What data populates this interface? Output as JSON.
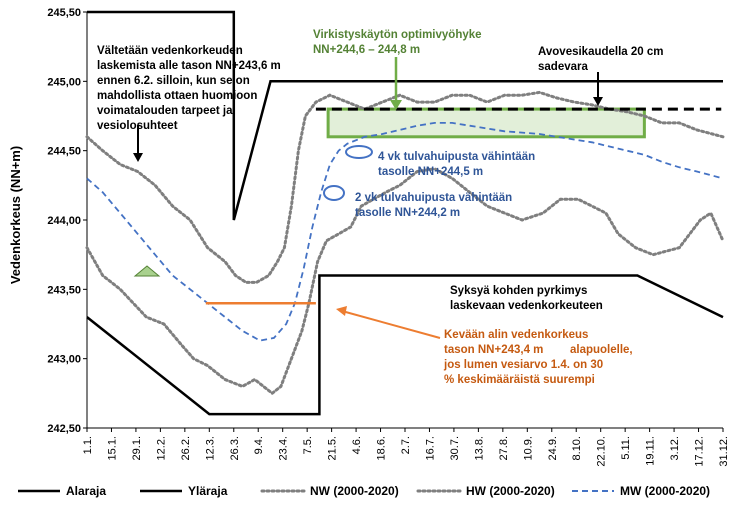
{
  "chart_data": {
    "type": "line",
    "ylabel": "Vedenkorkeus (NN+m)",
    "ylim": [
      242.5,
      245.5
    ],
    "y_ticks": [
      "242,50",
      "243,00",
      "243,50",
      "244,00",
      "244,50",
      "245,00",
      "245,50"
    ],
    "x_ticks": [
      "1.1.",
      "15.1.",
      "29.1.",
      "12.2.",
      "26.2.",
      "12.3.",
      "26.3.",
      "9.4.",
      "23.4.",
      "7.5.",
      "21.5.",
      "4.6.",
      "18.6.",
      "2.7.",
      "16.7.",
      "30.7.",
      "13.8.",
      "27.8.",
      "10.9.",
      "24.9.",
      "8.10.",
      "22.10.",
      "5.11.",
      "19.11.",
      "3.12.",
      "17.12.",
      "31.12."
    ],
    "x_domain": [
      1,
      365
    ],
    "series": [
      {
        "name": "Alaraja",
        "style": "solid",
        "color": "#000000",
        "points": [
          [
            1,
            243.3
          ],
          [
            71,
            242.6
          ],
          [
            134,
            242.6
          ],
          [
            134,
            243.6
          ],
          [
            316,
            243.6
          ],
          [
            365,
            243.3
          ]
        ]
      },
      {
        "name": "Yläraja",
        "style": "solid",
        "color": "#000000",
        "points": [
          [
            1,
            245.5
          ],
          [
            85,
            245.5
          ],
          [
            85,
            244.0
          ],
          [
            106,
            245.0
          ],
          [
            365,
            245.0
          ]
        ]
      },
      {
        "name": "NW (2000-2020)",
        "style": "dotted",
        "color": "#7f7f7f",
        "points": [
          [
            1,
            243.8
          ],
          [
            10,
            243.6
          ],
          [
            20,
            243.5
          ],
          [
            35,
            243.3
          ],
          [
            45,
            243.25
          ],
          [
            55,
            243.1
          ],
          [
            62,
            243.0
          ],
          [
            70,
            242.95
          ],
          [
            80,
            242.85
          ],
          [
            90,
            242.8
          ],
          [
            97,
            242.85
          ],
          [
            102,
            242.8
          ],
          [
            107,
            242.75
          ],
          [
            112,
            242.8
          ],
          [
            118,
            243.0
          ],
          [
            124,
            243.2
          ],
          [
            128,
            243.4
          ],
          [
            133,
            243.7
          ],
          [
            138,
            243.85
          ],
          [
            145,
            243.9
          ],
          [
            152,
            243.95
          ],
          [
            158,
            244.1
          ],
          [
            165,
            244.15
          ],
          [
            172,
            244.2
          ],
          [
            180,
            244.25
          ],
          [
            190,
            244.35
          ],
          [
            200,
            244.37
          ],
          [
            210,
            244.3
          ],
          [
            220,
            244.2
          ],
          [
            230,
            244.1
          ],
          [
            240,
            244.05
          ],
          [
            250,
            244.0
          ],
          [
            262,
            244.05
          ],
          [
            272,
            244.15
          ],
          [
            282,
            244.15
          ],
          [
            290,
            244.1
          ],
          [
            298,
            244.05
          ],
          [
            305,
            243.9
          ],
          [
            315,
            243.8
          ],
          [
            325,
            243.75
          ],
          [
            340,
            243.8
          ],
          [
            352,
            244.0
          ],
          [
            358,
            244.05
          ],
          [
            365,
            243.85
          ]
        ]
      },
      {
        "name": "HW (2000-2020)",
        "style": "dotted",
        "color": "#7f7f7f",
        "points": [
          [
            1,
            244.6
          ],
          [
            10,
            244.5
          ],
          [
            20,
            244.4
          ],
          [
            30,
            244.35
          ],
          [
            40,
            244.25
          ],
          [
            50,
            244.1
          ],
          [
            60,
            244.0
          ],
          [
            70,
            243.8
          ],
          [
            80,
            243.7
          ],
          [
            86,
            243.6
          ],
          [
            92,
            243.55
          ],
          [
            98,
            243.55
          ],
          [
            105,
            243.6
          ],
          [
            110,
            243.7
          ],
          [
            114,
            243.8
          ],
          [
            118,
            244.1
          ],
          [
            122,
            244.5
          ],
          [
            126,
            244.75
          ],
          [
            132,
            244.85
          ],
          [
            140,
            244.9
          ],
          [
            150,
            244.85
          ],
          [
            160,
            244.8
          ],
          [
            170,
            244.85
          ],
          [
            180,
            244.9
          ],
          [
            190,
            244.85
          ],
          [
            200,
            244.85
          ],
          [
            210,
            244.9
          ],
          [
            220,
            244.9
          ],
          [
            230,
            244.85
          ],
          [
            240,
            244.9
          ],
          [
            250,
            244.9
          ],
          [
            260,
            244.92
          ],
          [
            270,
            244.88
          ],
          [
            280,
            244.85
          ],
          [
            290,
            244.83
          ],
          [
            300,
            244.8
          ],
          [
            310,
            244.78
          ],
          [
            320,
            244.75
          ],
          [
            330,
            244.7
          ],
          [
            340,
            244.7
          ],
          [
            350,
            244.65
          ],
          [
            365,
            244.6
          ]
        ]
      },
      {
        "name": "MW (2000-2020)",
        "style": "dashed",
        "color": "#4472c4",
        "points": [
          [
            1,
            244.3
          ],
          [
            10,
            244.2
          ],
          [
            20,
            244.05
          ],
          [
            30,
            243.9
          ],
          [
            40,
            243.75
          ],
          [
            50,
            243.6
          ],
          [
            60,
            243.5
          ],
          [
            70,
            243.4
          ],
          [
            80,
            243.3
          ],
          [
            90,
            243.2
          ],
          [
            100,
            243.13
          ],
          [
            108,
            243.15
          ],
          [
            115,
            243.25
          ],
          [
            120,
            243.4
          ],
          [
            125,
            243.65
          ],
          [
            130,
            243.95
          ],
          [
            135,
            244.2
          ],
          [
            140,
            244.4
          ],
          [
            145,
            244.5
          ],
          [
            150,
            244.55
          ],
          [
            160,
            244.6
          ],
          [
            170,
            244.62
          ],
          [
            180,
            244.65
          ],
          [
            190,
            244.68
          ],
          [
            200,
            244.7
          ],
          [
            210,
            244.7
          ],
          [
            220,
            244.68
          ],
          [
            230,
            244.66
          ],
          [
            240,
            244.64
          ],
          [
            250,
            244.63
          ],
          [
            260,
            244.62
          ],
          [
            270,
            244.6
          ],
          [
            280,
            244.58
          ],
          [
            290,
            244.56
          ],
          [
            300,
            244.53
          ],
          [
            310,
            244.5
          ],
          [
            320,
            244.47
          ],
          [
            330,
            244.42
          ],
          [
            340,
            244.38
          ],
          [
            350,
            244.35
          ],
          [
            365,
            244.3
          ]
        ]
      }
    ],
    "annotations": {
      "vältetään": [
        "Vältetään vedenkorkeuden",
        "laskemista alle tason NN+243,6 m",
        "ennen 6.2. silloin, kun se on",
        "mahdollista ottaen huomioon",
        "voimatalouden tarpeet ja",
        "vesiolosuhteet"
      ],
      "virkistys": [
        "Virkistyskäytön optimivyöhyke",
        "NN+244,6 – 244,8 m"
      ],
      "avovesi": [
        "Avovesikaudella 20 cm",
        "sadevara"
      ],
      "tulva4": [
        "4 vk tulvahuipusta vähintään",
        "tasolle NN+244,5 m"
      ],
      "tulva2": [
        "2 vk tulvahuipusta vähintään",
        "tasolle NN+244,2 m"
      ],
      "syksy": [
        "Syksyä kohden pyrkimys",
        "laskevaan vedenkorkeuteen"
      ],
      "kevat": [
        "Kevään alin vedenkorkeus",
        "tason NN+243,4 m",
        "alapuolelle,",
        "jos lumen vesiarvo 1.4. on 30",
        "% keskimääräistä suurempi"
      ]
    },
    "colors": {
      "green": "#70ad47",
      "orange": "#ed7d31",
      "blue": "#4472c4",
      "gray": "#7f7f7f",
      "text_green": "#548235",
      "text_blue": "#2f5597",
      "text_orange": "#c55a11"
    },
    "legend": [
      {
        "name": "Alaraja",
        "style": "solid"
      },
      {
        "name": "Yläraja",
        "style": "solid"
      },
      {
        "name": "NW (2000-2020)",
        "style": "dotted"
      },
      {
        "name": "HW (2000-2020)",
        "style": "dotted"
      },
      {
        "name": "MW (2000-2020)",
        "style": "dashed"
      }
    ],
    "legend_position": "bottom",
    "grid": false
  }
}
